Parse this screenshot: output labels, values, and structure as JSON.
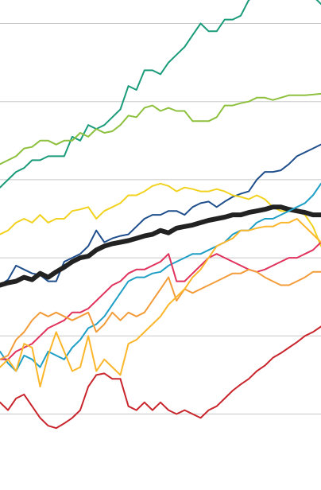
{
  "chart_data": {
    "type": "line",
    "title": "",
    "xlabel": "",
    "ylabel": "",
    "grid": true,
    "y_gridlines": [
      5,
      4,
      3,
      2,
      1,
      0
    ],
    "ylim": [
      -0.5,
      5.25
    ],
    "x": [
      0,
      1,
      2,
      3,
      4,
      5,
      6,
      7,
      8,
      9,
      10,
      11,
      12,
      13,
      14,
      15,
      16,
      17,
      18,
      19,
      20,
      21,
      22,
      23,
      24,
      25,
      26,
      27,
      28,
      29,
      30,
      31,
      32,
      33,
      34,
      35,
      36,
      37,
      38,
      39,
      40
    ],
    "xlim": [
      0,
      40
    ],
    "series": [
      {
        "color": "#1a9b7a",
        "width": 2,
        "values": [
          2.9,
          3.0,
          3.1,
          3.15,
          3.25,
          3.25,
          3.3,
          3.3,
          3.3,
          3.55,
          3.5,
          3.7,
          3.65,
          3.7,
          3.8,
          3.9,
          4.2,
          4.15,
          4.4,
          4.4,
          4.35,
          4.5,
          4.6,
          4.7,
          4.85,
          5.0,
          4.9,
          4.9,
          5.05,
          5.05,
          5.1,
          5.3,
          5.35,
          5.35,
          5.45,
          5.55,
          5.6,
          5.55,
          5.35,
          5.35,
          5.25
        ]
      },
      {
        "color": "#8dc03d",
        "width": 2,
        "values": [
          3.2,
          3.25,
          3.3,
          3.4,
          3.42,
          3.5,
          3.5,
          3.45,
          3.5,
          3.5,
          3.6,
          3.55,
          3.65,
          3.6,
          3.62,
          3.7,
          3.82,
          3.8,
          3.92,
          3.95,
          3.88,
          3.92,
          3.88,
          3.88,
          3.75,
          3.75,
          3.75,
          3.8,
          3.95,
          3.95,
          3.98,
          4.0,
          4.05,
          4.05,
          4.02,
          4.05,
          4.08,
          4.08,
          4.08,
          4.09,
          4.1
        ]
      },
      {
        "color": "#1f4e8c",
        "width": 2,
        "values": [
          1.65,
          1.72,
          1.9,
          1.85,
          1.8,
          1.78,
          1.7,
          1.7,
          1.95,
          2.0,
          2.05,
          2.15,
          2.35,
          2.2,
          2.25,
          2.28,
          2.3,
          2.4,
          2.5,
          2.55,
          2.55,
          2.6,
          2.6,
          2.55,
          2.65,
          2.7,
          2.72,
          2.65,
          2.72,
          2.78,
          2.82,
          2.85,
          3.0,
          3.1,
          3.1,
          3.12,
          3.2,
          3.3,
          3.35,
          3.4,
          3.45
        ]
      },
      {
        "color": "#f1d21f",
        "width": 2,
        "values": [
          2.3,
          2.35,
          2.45,
          2.5,
          2.45,
          2.55,
          2.45,
          2.5,
          2.5,
          2.6,
          2.62,
          2.65,
          2.5,
          2.6,
          2.65,
          2.7,
          2.8,
          2.8,
          2.85,
          2.92,
          2.95,
          2.92,
          2.85,
          2.9,
          2.88,
          2.85,
          2.85,
          2.88,
          2.85,
          2.8,
          2.78,
          2.75,
          2.8,
          2.75,
          2.65,
          2.6,
          2.6,
          2.6,
          2.55,
          2.4,
          2.15
        ]
      },
      {
        "color": "#222222",
        "width": 6,
        "values": [
          1.65,
          1.68,
          1.7,
          1.75,
          1.72,
          1.8,
          1.75,
          1.82,
          1.88,
          1.95,
          2.0,
          2.02,
          2.1,
          2.15,
          2.18,
          2.2,
          2.22,
          2.25,
          2.28,
          2.3,
          2.35,
          2.32,
          2.38,
          2.4,
          2.42,
          2.45,
          2.48,
          2.5,
          2.52,
          2.55,
          2.55,
          2.58,
          2.6,
          2.62,
          2.65,
          2.65,
          2.62,
          2.6,
          2.58,
          2.55,
          2.55
        ]
      },
      {
        "color": "#1f9fc6",
        "width": 2,
        "values": [
          0.8,
          0.65,
          0.55,
          0.75,
          0.7,
          0.6,
          0.8,
          0.75,
          0.7,
          0.85,
          0.95,
          1.1,
          1.15,
          1.25,
          1.4,
          1.55,
          1.7,
          1.75,
          1.75,
          1.8,
          1.82,
          1.9,
          1.95,
          2.0,
          2.05,
          2.05,
          2.1,
          2.15,
          2.2,
          2.3,
          2.35,
          2.35,
          2.45,
          2.5,
          2.5,
          2.55,
          2.6,
          2.65,
          2.7,
          2.8,
          2.95
        ]
      },
      {
        "color": "#e0325c",
        "width": 2,
        "values": [
          0.7,
          0.7,
          0.8,
          0.85,
          0.9,
          1.0,
          1.1,
          1.15,
          1.2,
          1.3,
          1.3,
          1.35,
          1.45,
          1.55,
          1.65,
          1.7,
          1.8,
          1.85,
          1.85,
          1.9,
          1.95,
          2.05,
          1.7,
          1.7,
          1.8,
          1.9,
          2.0,
          2.05,
          2.0,
          1.95,
          1.9,
          1.85,
          1.82,
          1.85,
          1.9,
          1.95,
          2.0,
          2.0,
          2.05,
          2.1,
          2.2
        ]
      },
      {
        "color": "#f39c3a",
        "width": 2,
        "values": [
          0.7,
          0.75,
          0.95,
          1.05,
          1.2,
          1.3,
          1.25,
          1.3,
          1.25,
          1.2,
          1.25,
          1.3,
          1.05,
          1.15,
          1.3,
          1.2,
          1.3,
          1.25,
          1.3,
          1.45,
          1.6,
          1.75,
          1.45,
          1.6,
          1.55,
          1.6,
          1.65,
          1.7,
          1.75,
          1.8,
          1.8,
          1.85,
          1.82,
          1.75,
          1.7,
          1.65,
          1.65,
          1.7,
          1.75,
          1.82,
          1.82
        ]
      },
      {
        "color": "#fbb72b",
        "width": 2,
        "values": [
          0.6,
          0.7,
          0.55,
          0.9,
          0.85,
          0.35,
          0.75,
          1.05,
          0.8,
          0.55,
          0.6,
          1.0,
          0.55,
          0.7,
          0.6,
          0.5,
          0.9,
          0.95,
          1.05,
          1.15,
          1.25,
          1.4,
          1.5,
          1.6,
          1.75,
          1.85,
          2.0,
          2.15,
          2.2,
          2.25,
          2.35,
          2.35,
          2.38,
          2.4,
          2.4,
          2.45,
          2.45,
          2.5,
          2.4,
          2.3,
          2.2
        ]
      },
      {
        "color": "#c9252c",
        "width": 2,
        "values": [
          0.15,
          0.05,
          0.2,
          0.25,
          0.1,
          -0.05,
          -0.15,
          -0.18,
          -0.12,
          -0.05,
          0.05,
          0.35,
          0.5,
          0.52,
          0.45,
          0.45,
          0.1,
          0.05,
          0.15,
          0.05,
          0.15,
          0.05,
          0.0,
          0.05,
          0.0,
          -0.05,
          0.05,
          0.1,
          0.2,
          0.3,
          0.38,
          0.45,
          0.55,
          0.62,
          0.72,
          0.78,
          0.85,
          0.92,
          1.0,
          1.05,
          1.12
        ]
      }
    ]
  }
}
